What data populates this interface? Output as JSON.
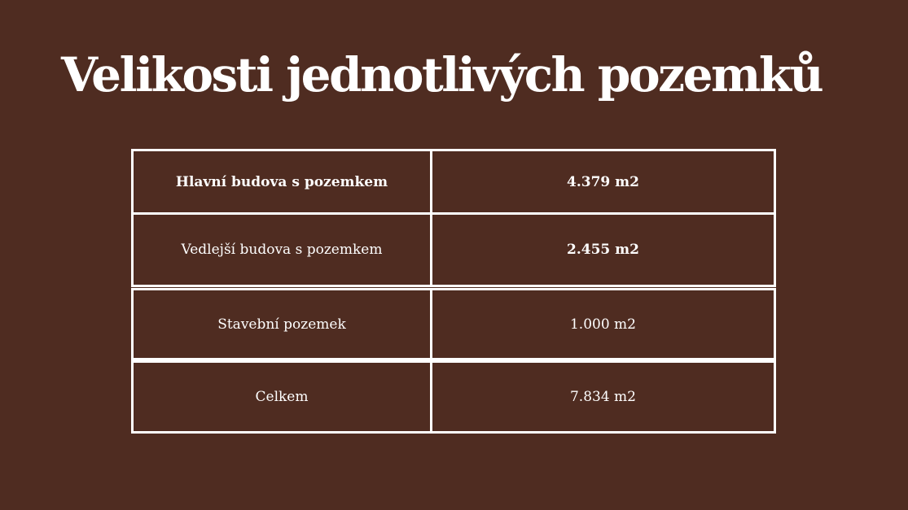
{
  "title": "Velikosti jednotlivých pozemků",
  "table": {
    "rows": [
      {
        "label": "Hlavní budova s pozemkem",
        "value": "4.379 m2",
        "label_bold": true,
        "value_bold": true
      },
      {
        "label": "Vedlejší budova s pozemkem",
        "value": "2.455 m2",
        "label_bold": false,
        "value_bold": true
      },
      {
        "label": "Stavební pozemek",
        "value": "1.000 m2",
        "label_bold": false,
        "value_bold": false
      },
      {
        "label": "Celkem",
        "value": "7.834 m2",
        "label_bold": false,
        "value_bold": false
      }
    ]
  },
  "colors": {
    "background": "#4f2c21",
    "text": "#ffffff",
    "border": "#ffffff"
  }
}
